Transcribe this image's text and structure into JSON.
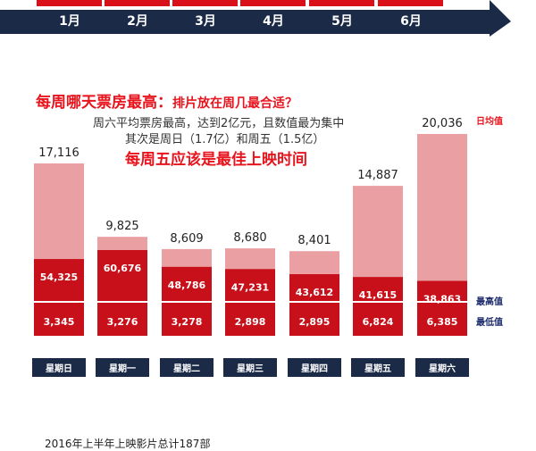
{
  "months": [
    "1月",
    "2月",
    "3月",
    "4月",
    "5月",
    "6月"
  ],
  "headline": {
    "main": "每周哪天票房最高：",
    "sub": "排片放在周几最合适？"
  },
  "description": [
    "周六平均票房最高，达到2亿元，且数值最为集中",
    "其次是周日（1.7亿）和周五（1.5亿）"
  ],
  "highlight": "每周五应该是最佳上映时间",
  "footer": "2016年上半年上映影片总计187部",
  "colors": {
    "navy": "#1b2a47",
    "month_red": "#d9101a",
    "avg_bar": "#eaa0a3",
    "high_bar": "#c8101a",
    "label_red": "#e8141d",
    "legend_navy": "#1b2a6b"
  },
  "chart_data": {
    "type": "bar",
    "categories": [
      "星期日",
      "星期一",
      "星期二",
      "星期三",
      "星期四",
      "星期五",
      "星期六"
    ],
    "series": [
      {
        "name": "日均值",
        "values": [
          17116,
          9825,
          8609,
          8680,
          8401,
          14887,
          20036
        ]
      },
      {
        "name": "最高值",
        "values": [
          54325,
          60676,
          48786,
          47231,
          43612,
          41615,
          38863
        ]
      },
      {
        "name": "最低值",
        "values": [
          3345,
          3276,
          3278,
          2898,
          2895,
          6824,
          6385
        ]
      }
    ],
    "data_labels": {
      "avg": [
        "17,116",
        "9,825",
        "8,609",
        "8,680",
        "8,401",
        "14,887",
        "20,036"
      ],
      "high": [
        "54,325",
        "60,676",
        "48,786",
        "47,231",
        "43,612",
        "41,615",
        "38,863"
      ],
      "low": [
        "3,345",
        "3,276",
        "3,278",
        "2,898",
        "2,895",
        "6,824",
        "6,385"
      ]
    },
    "legend": [
      "日均值",
      "最高值",
      "最低值"
    ],
    "legend_placement": "right"
  }
}
